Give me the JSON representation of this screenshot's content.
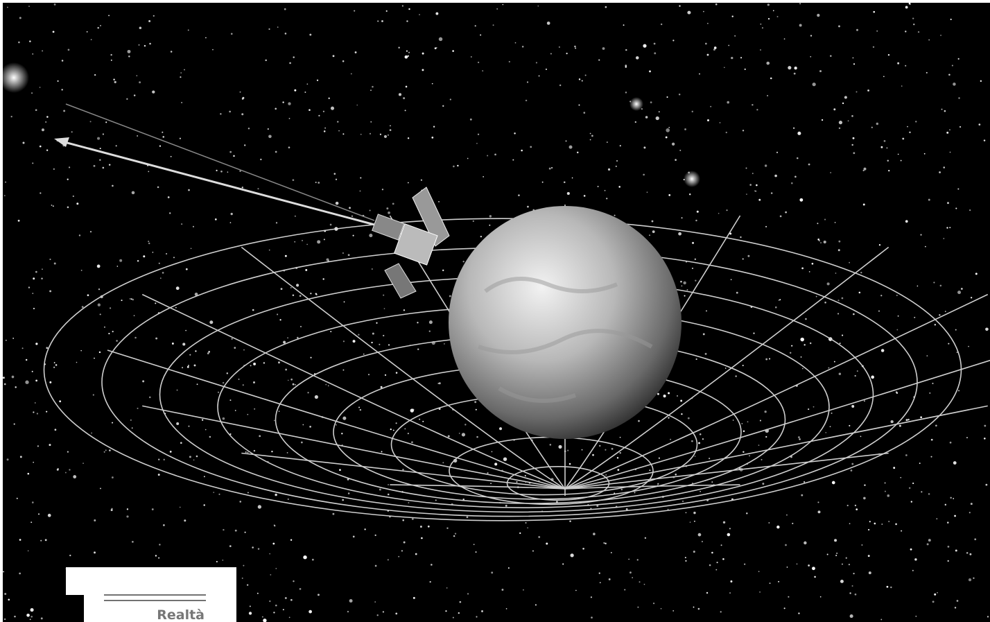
{
  "caption": {
    "label": "Realtà"
  }
}
